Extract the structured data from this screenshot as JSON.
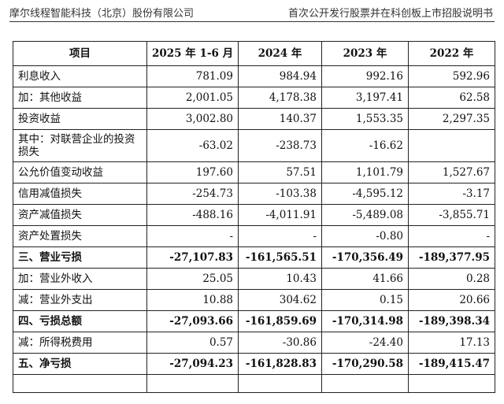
{
  "header": {
    "company": "摩尔线程智能科技（北京）股份有限公司",
    "doc_title": "首次公开发行股票并在科创板上市招股说明书"
  },
  "table": {
    "columns": [
      "项目",
      "2025 年 1-6 月",
      "2024 年",
      "2023 年",
      "2022 年"
    ],
    "rows": [
      {
        "label": "利息收入",
        "values": [
          "781.09",
          "984.94",
          "992.16",
          "592.96"
        ]
      },
      {
        "label": "加：其他收益",
        "values": [
          "2,001.05",
          "4,178.38",
          "3,197.41",
          "62.58"
        ]
      },
      {
        "label": "投资收益",
        "values": [
          "3,002.80",
          "140.37",
          "1,553.35",
          "2,297.35"
        ]
      },
      {
        "label": "其中：对联营企业的投资损失",
        "values": [
          "-63.02",
          "-238.73",
          "-16.62",
          ""
        ]
      },
      {
        "label": "公允价值变动收益",
        "values": [
          "197.60",
          "57.51",
          "1,101.79",
          "1,527.67"
        ]
      },
      {
        "label": "信用减值损失",
        "values": [
          "-254.73",
          "-103.38",
          "-4,595.12",
          "-3.17"
        ]
      },
      {
        "label": "资产减值损失",
        "values": [
          "-488.16",
          "-4,011.91",
          "-5,489.08",
          "-3,855.71"
        ]
      },
      {
        "label": "资产处置损失",
        "values": [
          "-",
          "-",
          "-0.80",
          "-"
        ]
      },
      {
        "label": "三、营业亏损",
        "values": [
          "-27,107.83",
          "-161,565.51",
          "-170,356.49",
          "-189,377.95"
        ]
      },
      {
        "label": "加：营业外收入",
        "values": [
          "25.05",
          "10.43",
          "41.66",
          "0.28"
        ]
      },
      {
        "label": "减：营业外支出",
        "values": [
          "10.88",
          "304.62",
          "0.15",
          "20.66"
        ]
      },
      {
        "label": "四、亏损总额",
        "values": [
          "-27,093.66",
          "-161,859.69",
          "-170,314.98",
          "-189,398.34"
        ]
      },
      {
        "label": "减：所得税费用",
        "values": [
          "0.57",
          "-30.86",
          "-24.40",
          "17.13"
        ]
      },
      {
        "label": "五、净亏损",
        "values": [
          "-27,094.23",
          "-161,828.83",
          "-170,290.58",
          "-189,415.47"
        ]
      }
    ]
  }
}
